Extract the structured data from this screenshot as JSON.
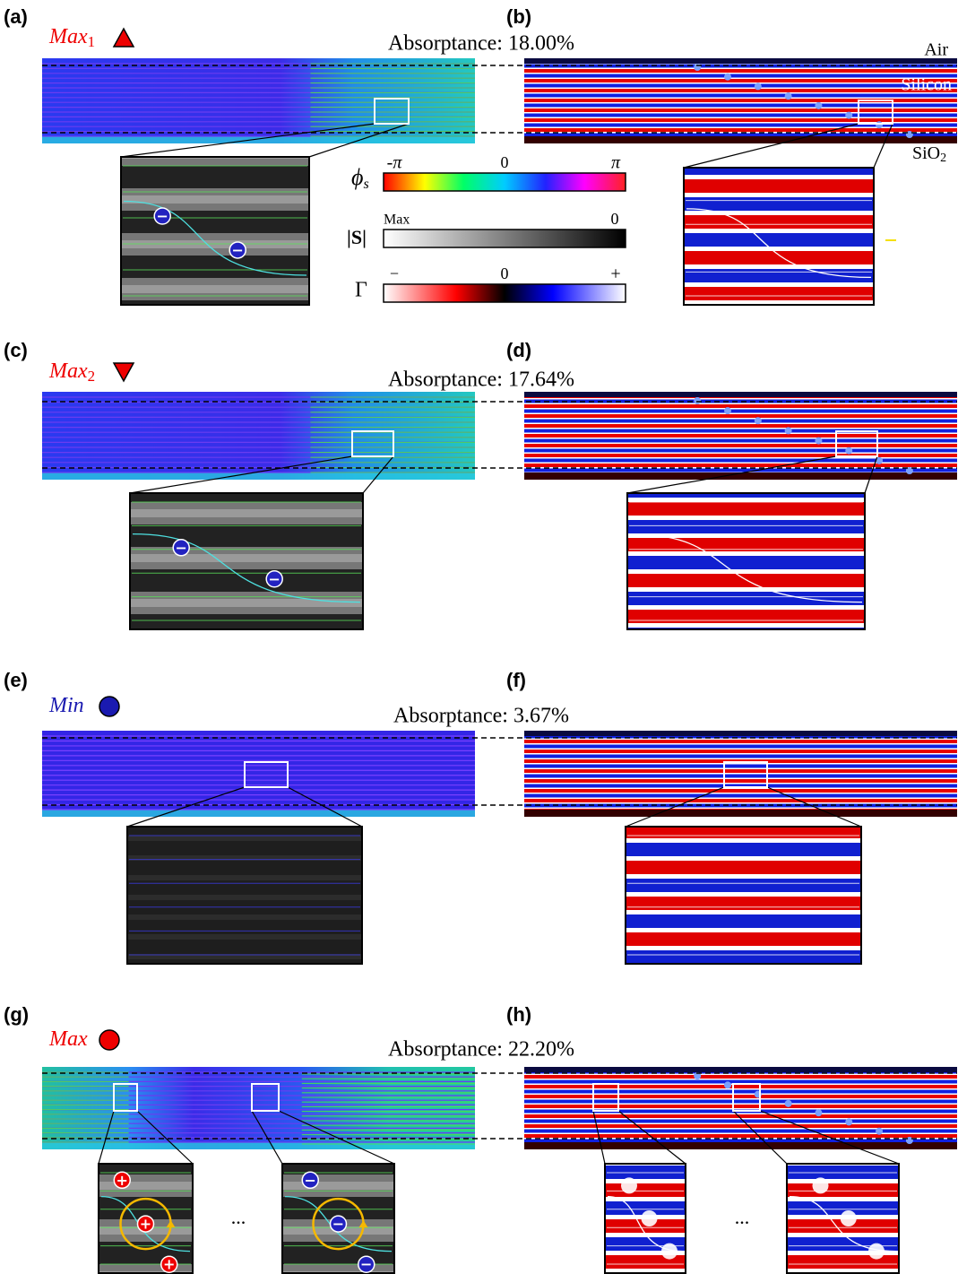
{
  "panel_labels": [
    "(a)",
    "(b)",
    "(c)",
    "(d)",
    "(e)",
    "(f)",
    "(g)",
    "(h)"
  ],
  "rows": [
    {
      "mode": "Max",
      "subscript": "1",
      "absorptance": "Absorptance: 18.00%"
    },
    {
      "mode": "Max",
      "subscript": "2",
      "absorptance": "Absorptance: 17.64%"
    },
    {
      "mode": "Min",
      "absorptance": "Absorptance: 3.67%"
    },
    {
      "mode": "Max",
      "absorptance": "Absorptance: 22.20%"
    }
  ],
  "layers": {
    "air": "Air",
    "silicon": "Silicon",
    "sio": "SiO",
    "sio_sub": "2"
  },
  "legend": {
    "phase_symbol": "ϕ",
    "phase_sub": "s",
    "phase_min": "-π",
    "phase_mid": "0",
    "phase_max": "π",
    "magnitude_symbol": "|S|",
    "magnitude_max": "Max",
    "magnitude_min": "0",
    "gamma_symbol": "Γ",
    "gamma_min": "−",
    "gamma_mid": "0",
    "gamma_max": "+"
  },
  "charges": {
    "minus": "−",
    "plus": "+"
  },
  "ellipsis": "..."
}
